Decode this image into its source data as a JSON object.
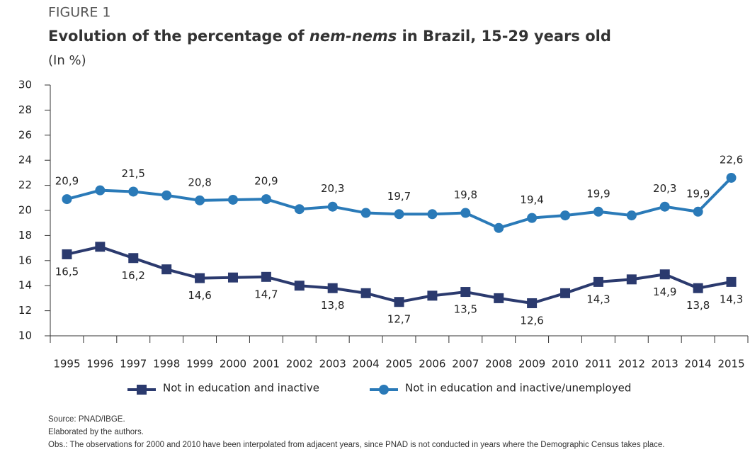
{
  "chart_data": {
    "type": "line",
    "figure_label": "FIGURE 1",
    "title": [
      "Evolution of the percentage of ",
      "nem-nems",
      " in Brazil, 15-29 years old"
    ],
    "subtitle": "(In %)",
    "categories": [
      "1995",
      "1996",
      "1997",
      "1998",
      "1999",
      "2000",
      "2001",
      "2002",
      "2003",
      "2004",
      "2005",
      "2006",
      "2007",
      "2008",
      "2009",
      "2010",
      "2011",
      "2012",
      "2013",
      "2014",
      "2015"
    ],
    "series": [
      {
        "name": "Not in education and inactive",
        "color": "#2b3a6e",
        "marker": "square",
        "label_position": "below",
        "values": [
          16.5,
          17.1,
          16.2,
          15.3,
          14.6,
          14.65,
          14.7,
          14.0,
          13.8,
          13.4,
          12.7,
          13.2,
          13.5,
          13.0,
          12.6,
          13.4,
          14.3,
          14.5,
          14.9,
          13.8,
          14.3
        ],
        "value_labels": [
          "16,5",
          null,
          "16,2",
          null,
          "14,6",
          null,
          "14,7",
          null,
          "13,8",
          null,
          "12,7",
          null,
          "13,5",
          null,
          "12,6",
          null,
          "14,3",
          null,
          "14,9",
          "13,8",
          "14,3"
        ]
      },
      {
        "name": "Not in education and inactive/unemployed",
        "color": "#2a7ab8",
        "marker": "circle",
        "label_position": "above",
        "values": [
          20.9,
          21.6,
          21.5,
          21.2,
          20.8,
          20.85,
          20.9,
          20.1,
          20.3,
          19.8,
          19.7,
          19.7,
          19.8,
          18.6,
          19.4,
          19.6,
          19.9,
          19.6,
          20.3,
          19.9,
          22.6
        ],
        "value_labels": [
          "20,9",
          null,
          "21,5",
          null,
          "20,8",
          null,
          "20,9",
          null,
          "20,3",
          null,
          "19,7",
          null,
          "19,8",
          null,
          "19,4",
          null,
          "19,9",
          null,
          "20,3",
          "19,9",
          "22,6"
        ]
      }
    ],
    "ylim": [
      10,
      30
    ],
    "yticks": [
      10,
      12,
      14,
      16,
      18,
      20,
      22,
      24,
      26,
      28,
      30
    ],
    "grid": false,
    "legend": "bottom",
    "notes": [
      "Source: PNAD/IBGE.",
      "Elaborated by the authors.",
      "Obs.: The observations for 2000 and 2010 have been interpolated from adjacent years, since PNAD is not conducted in years where the Demographic Census takes place."
    ]
  }
}
